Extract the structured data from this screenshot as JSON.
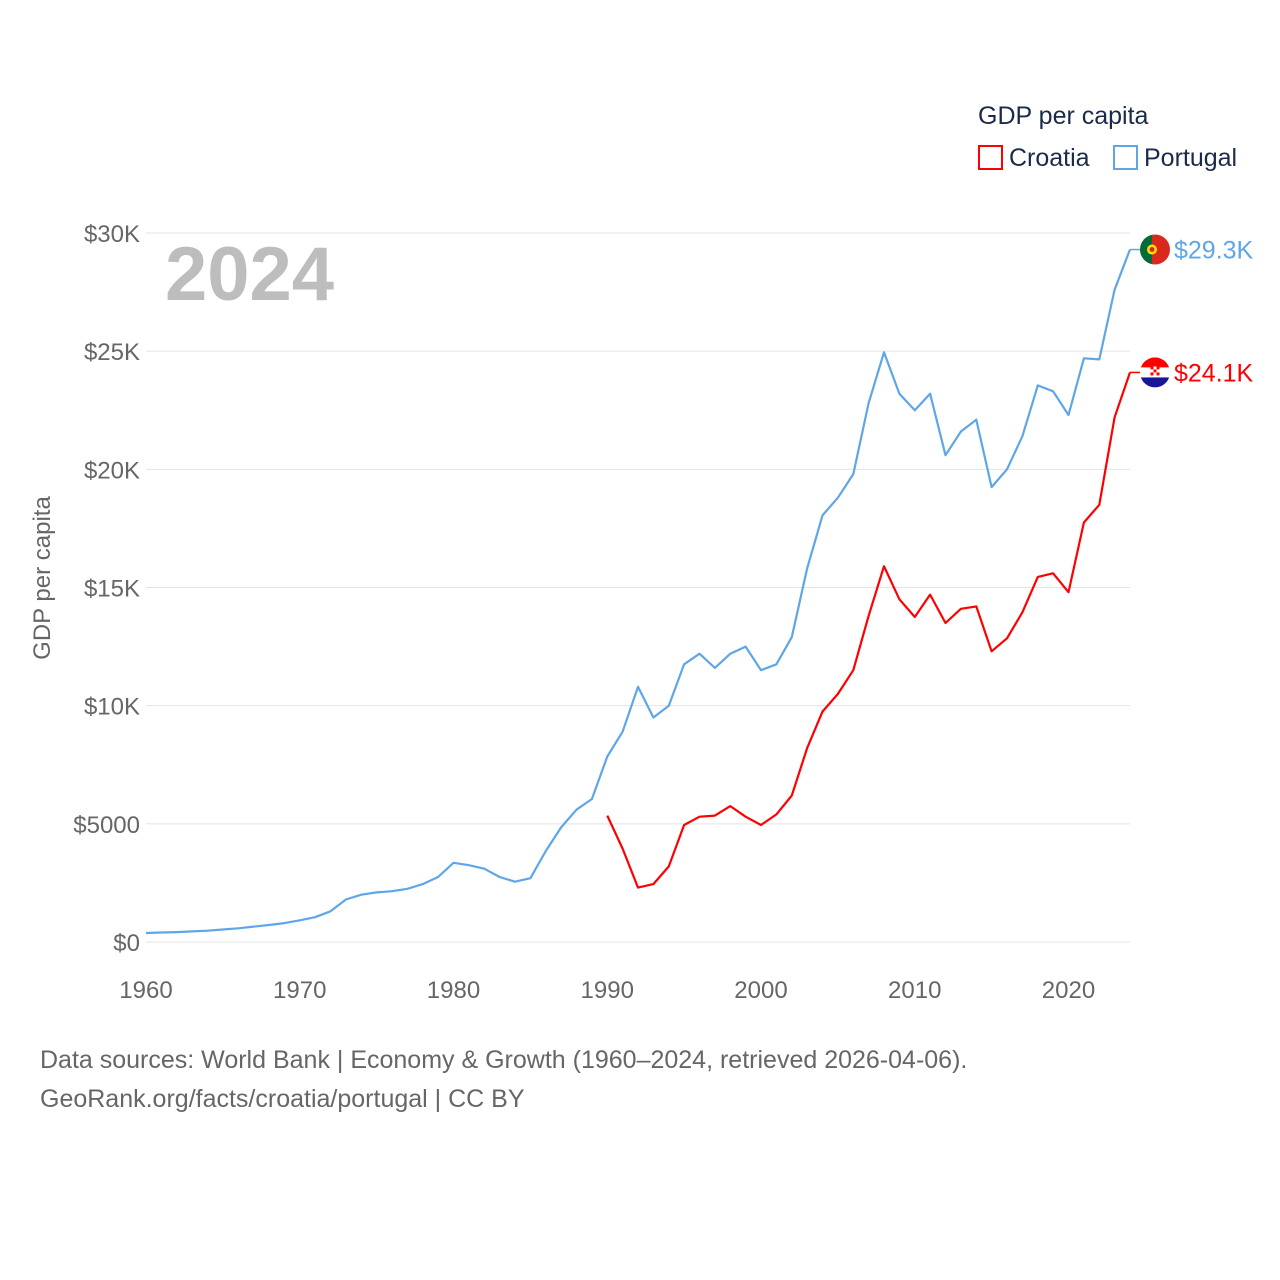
{
  "chart_data": {
    "type": "line",
    "year_label": "2024",
    "ylabel": "GDP per capita",
    "legend_title": "GDP per capita",
    "legend_position": "top-right",
    "ylim": [
      0,
      30000
    ],
    "xlim": [
      1960,
      2024
    ],
    "y_ticks": [
      {
        "v": 0,
        "label": "$0"
      },
      {
        "v": 5000,
        "label": "$5000"
      },
      {
        "v": 10000,
        "label": "$10K"
      },
      {
        "v": 15000,
        "label": "$15K"
      },
      {
        "v": 20000,
        "label": "$20K"
      },
      {
        "v": 25000,
        "label": "$25K"
      },
      {
        "v": 30000,
        "label": "$30K"
      }
    ],
    "x_ticks": [
      {
        "v": 1960,
        "label": "1960"
      },
      {
        "v": 1970,
        "label": "1970"
      },
      {
        "v": 1980,
        "label": "1980"
      },
      {
        "v": 1990,
        "label": "1990"
      },
      {
        "v": 2000,
        "label": "2000"
      },
      {
        "v": 2010,
        "label": "2010"
      },
      {
        "v": 2020,
        "label": "2020"
      }
    ],
    "grid": true,
    "series": [
      {
        "name": "Croatia",
        "color": "#ff0000",
        "end_label": "$24.1K",
        "flag": "croatia-flag",
        "start_year": 1990,
        "values": [
          5350,
          3950,
          2300,
          2450,
          3200,
          4950,
          5300,
          5350,
          5750,
          5300,
          4950,
          5400,
          6200,
          8200,
          9750,
          10500,
          11500,
          13800,
          15900,
          14500,
          13750,
          14700,
          13500,
          14100,
          14200,
          12300,
          12850,
          13950,
          15450,
          15600,
          14800,
          17750,
          18500,
          22200,
          24100
        ]
      },
      {
        "name": "Portugal",
        "color": "#5ea6e8",
        "end_label": "$29.3K",
        "flag": "portugal-flag",
        "start_year": 1960,
        "values": [
          380,
          400,
          420,
          450,
          480,
          530,
          580,
          650,
          720,
          800,
          920,
          1050,
          1300,
          1800,
          2000,
          2100,
          2150,
          2250,
          2450,
          2750,
          3350,
          3250,
          3100,
          2750,
          2550,
          2700,
          3850,
          4850,
          5600,
          6050,
          7850,
          8900,
          10800,
          9500,
          10000,
          11750,
          12200,
          11600,
          12200,
          12500,
          11500,
          11750,
          12900,
          15800,
          18050,
          18800,
          19800,
          22800,
          24950,
          23200,
          22500,
          23200,
          20600,
          21600,
          22100,
          19250,
          20000,
          21400,
          23550,
          23300,
          22300,
          24700,
          24650,
          27600,
          29300
        ]
      }
    ]
  },
  "footer": {
    "line1": "Data sources: World Bank | Economy & Growth (1960–2024, retrieved 2026-04-06).",
    "line2": "GeoRank.org/facts/croatia/portugal | CC BY"
  }
}
